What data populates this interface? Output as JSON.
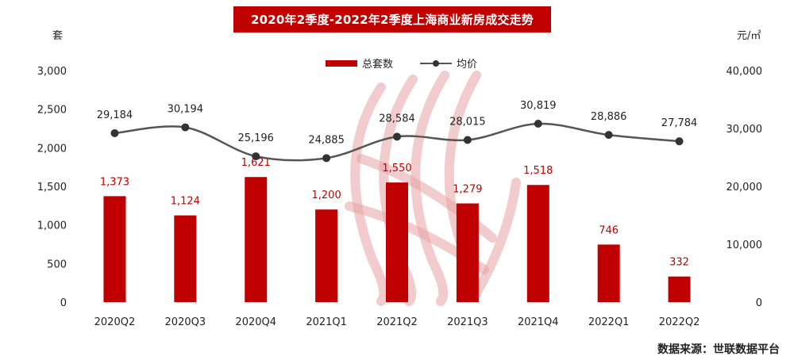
{
  "title": "2020年2季度-2022年2季度上海商业新房成交走势",
  "left_unit": "套",
  "right_unit": "元/㎡",
  "source": "数据来源：世联数据平台",
  "legend": {
    "bar": "总套数",
    "line": "均价"
  },
  "colors": {
    "bar": "#c00000",
    "line": "#555555",
    "marker": "#333333",
    "watermark": "#e7a3a3"
  },
  "chart_data": {
    "type": "bar",
    "categories": [
      "2020Q2",
      "2020Q3",
      "2020Q4",
      "2021Q1",
      "2021Q2",
      "2021Q3",
      "2021Q4",
      "2022Q1",
      "2022Q2"
    ],
    "series": [
      {
        "name": "总套数",
        "type": "bar",
        "axis": "left",
        "values": [
          1373,
          1124,
          1621,
          1200,
          1550,
          1279,
          1518,
          746,
          332
        ]
      },
      {
        "name": "均价",
        "type": "line",
        "axis": "right",
        "values": [
          29184,
          30194,
          25196,
          24885,
          28584,
          28015,
          30819,
          28886,
          27784
        ]
      }
    ],
    "bar_labels": [
      "1,373",
      "1,124",
      "1,621",
      "1,200",
      "1,550",
      "1,279",
      "1,518",
      "746",
      "332"
    ],
    "line_labels": [
      "29,184",
      "30,194",
      "25,196",
      "24,885",
      "28,584",
      "28,015",
      "30,819",
      "28,886",
      "27,784"
    ],
    "left_axis": {
      "ylim": [
        0,
        3000
      ],
      "ticks": [
        0,
        500,
        1000,
        1500,
        2000,
        2500,
        3000
      ],
      "tick_labels": [
        "0",
        "500",
        "1,000",
        "1,500",
        "2,000",
        "2,500",
        "3,000"
      ]
    },
    "right_axis": {
      "ylim": [
        0,
        40000
      ],
      "ticks": [
        0,
        10000,
        20000,
        30000,
        40000
      ],
      "tick_labels": [
        "0",
        "10,000",
        "20,000",
        "30,000",
        "40,000"
      ]
    },
    "grid": false
  }
}
